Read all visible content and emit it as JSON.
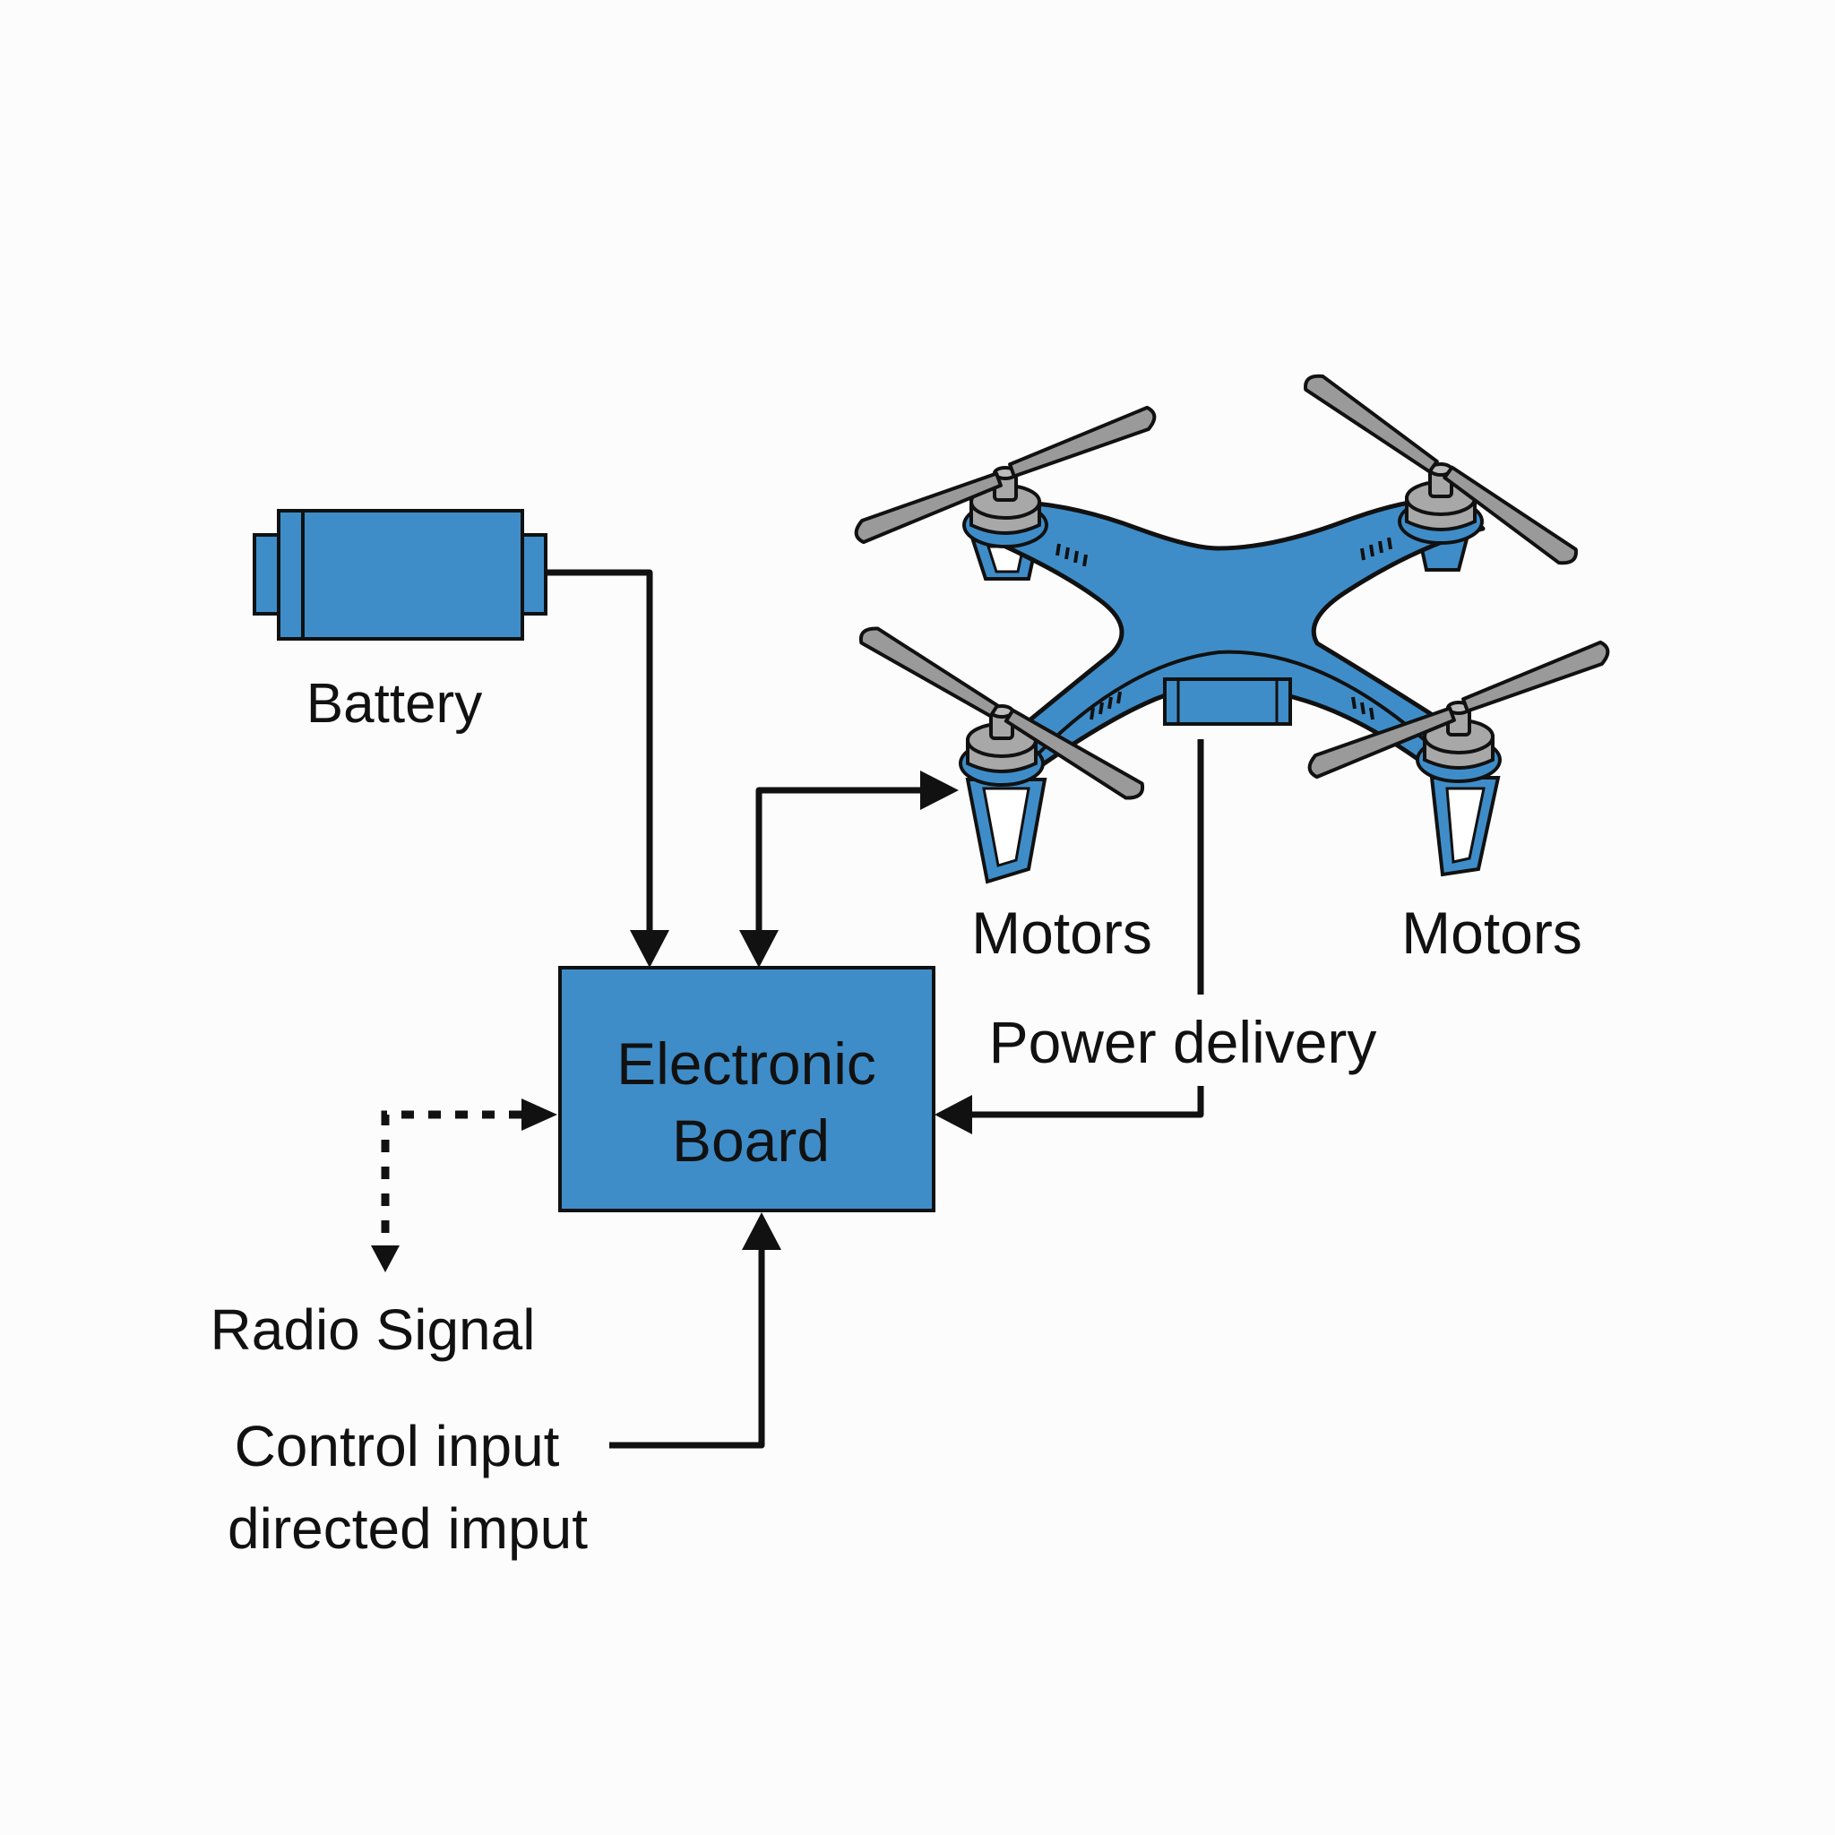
{
  "labels": {
    "battery": "Battery",
    "motors_left": "Motors",
    "motors_right": "Motors",
    "power_delivery": "Power delivery",
    "board_line1": "Electronic",
    "board_line2": "Board",
    "radio_signal": "Radio Signal",
    "control_line1": "Control input",
    "control_line2": "directed imput"
  },
  "colors": {
    "component_blue": "#3f8dc8",
    "outline": "#111111",
    "propeller_gray": "#9a9a9a",
    "motor_gray": "#a8a8a8",
    "background": "#fcfcfc"
  },
  "icons": {
    "battery": "battery-icon",
    "drone": "quadcopter-icon"
  }
}
